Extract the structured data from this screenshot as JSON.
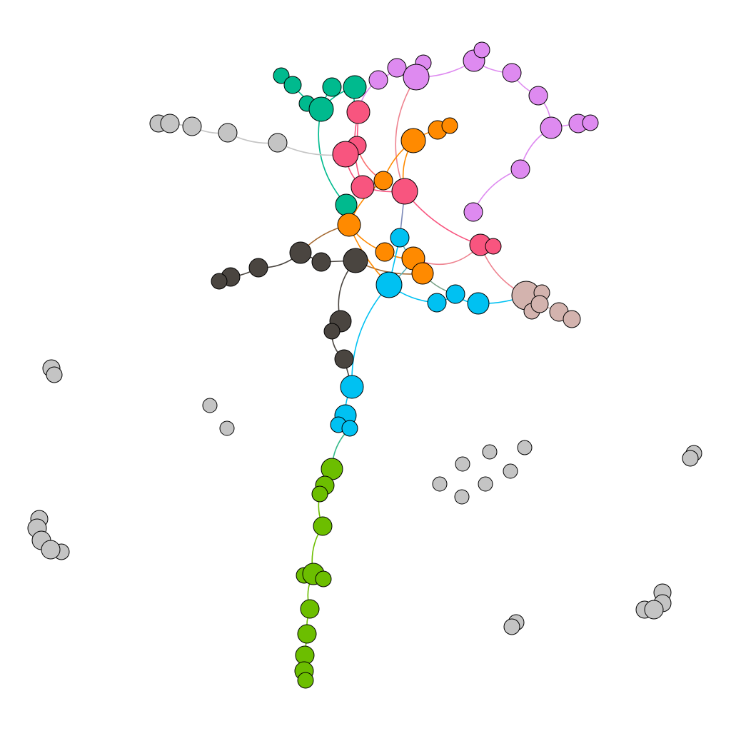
{
  "graph": {
    "type": "network",
    "clusters": [
      {
        "id": "teal",
        "color": "#00BA8E"
      },
      {
        "id": "violet",
        "color": "#DE8AF0"
      },
      {
        "id": "pink",
        "color": "#F8557F"
      },
      {
        "id": "orange",
        "color": "#FF8A00"
      },
      {
        "id": "dark",
        "color": "#4A4540"
      },
      {
        "id": "cyan",
        "color": "#00C1F2"
      },
      {
        "id": "green",
        "color": "#6CBE00"
      },
      {
        "id": "rose",
        "color": "#D3B3AE"
      },
      {
        "id": "gray",
        "color": "#C4C4C4"
      }
    ],
    "node_count": 114,
    "edge_count": 92
  }
}
